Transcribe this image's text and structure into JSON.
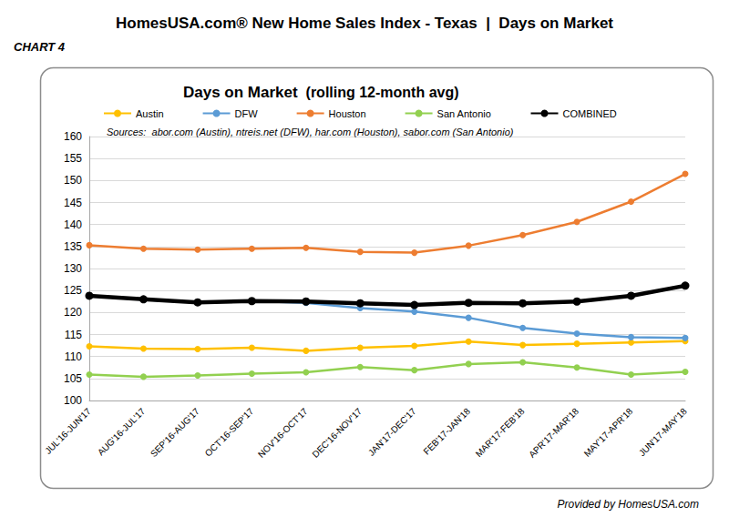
{
  "page": {
    "title": "HomesUSA.com® New Home Sales Index - Texas  |  Days on Market",
    "chart_number": "CHART 4",
    "footer": "Provided by HomesUSA.com"
  },
  "chart_data": {
    "type": "line",
    "title": "Days on Market",
    "subtitle": "(rolling 12-month avg)",
    "annotations": [
      "Sources:  abor.com (Austin), ntreis.net (DFW), har.com (Houston), sabor.com (San Antonio)"
    ],
    "categories": [
      "JUL'16-JUN'17",
      "AUG'16-JUL'17",
      "SEP'16-AUG'17",
      "OCT'16-SEP'17",
      "NOV'16-OCT'17",
      "DEC'16-NOV'17",
      "JAN'17-DEC'17",
      "FEB'17-JAN'18",
      "MAR'17-FEB'18",
      "APR'17-MAR'18",
      "MAY'17-APR'18",
      "JUN'17-MAY'18"
    ],
    "series": [
      {
        "name": "Austin",
        "color": "#FFC000",
        "values": [
          112.3,
          111.8,
          111.7,
          112.0,
          111.3,
          112.0,
          112.4,
          113.4,
          112.6,
          112.9,
          113.2,
          113.5
        ]
      },
      {
        "name": "DFW",
        "color": "#5B9BD5",
        "values": [
          123.8,
          122.9,
          122.3,
          122.6,
          122.2,
          121.0,
          120.2,
          118.8,
          116.5,
          115.2,
          114.4,
          114.2
        ]
      },
      {
        "name": "Houston",
        "color": "#ED7D31",
        "values": [
          135.3,
          134.5,
          134.3,
          134.5,
          134.7,
          133.8,
          133.6,
          135.2,
          137.6,
          140.6,
          145.2,
          151.5
        ]
      },
      {
        "name": "San Antonio",
        "color": "#92D050",
        "values": [
          105.9,
          105.4,
          105.7,
          106.1,
          106.4,
          107.6,
          106.9,
          108.3,
          108.7,
          107.5,
          105.9,
          106.5
        ]
      },
      {
        "name": "COMBINED",
        "color": "#000000",
        "values": [
          123.8,
          123.0,
          122.3,
          122.6,
          122.5,
          122.1,
          121.7,
          122.2,
          122.1,
          122.5,
          123.8,
          126.1
        ]
      }
    ],
    "ylim": [
      100,
      160
    ],
    "yticks": [
      100,
      105,
      110,
      115,
      120,
      125,
      130,
      135,
      140,
      145,
      150,
      155,
      160
    ],
    "grid": true,
    "legend": "top",
    "marker": "circle",
    "line_style": "solid"
  }
}
